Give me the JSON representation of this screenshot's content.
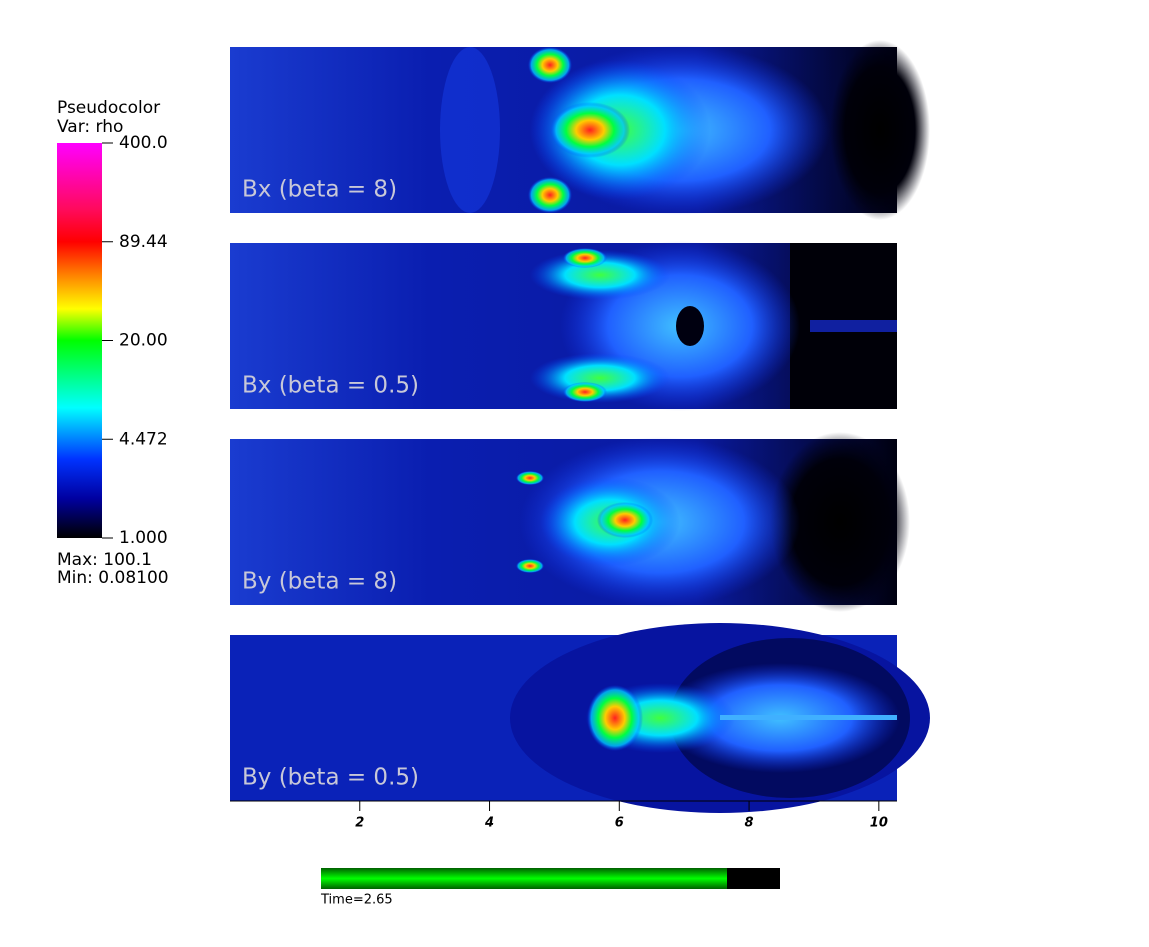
{
  "chart_data": {
    "type": "pseudocolor",
    "legend_title": "Pseudocolor",
    "variable": "Var: rho",
    "colorbar": {
      "scale": "log",
      "lim": [
        1,
        400
      ],
      "ticks": [
        {
          "value": 400,
          "label": "400.0"
        },
        {
          "value": 89.44,
          "label": "89.44"
        },
        {
          "value": 20,
          "label": "20.00"
        },
        {
          "value": 4.472,
          "label": "4.472"
        },
        {
          "value": 1,
          "label": "1.000"
        }
      ]
    },
    "max_text": "Max:  100.1",
    "min_text": "Min:  0.08100",
    "panels": [
      "Bx (beta = 8)",
      "Bx (beta = 0.5)",
      "By (beta = 8)",
      "By (beta = 0.5)"
    ],
    "xlim": [
      0,
      10.28
    ],
    "xticks": [
      2,
      4,
      6,
      8,
      10
    ],
    "time_text": "Time=2.65"
  }
}
